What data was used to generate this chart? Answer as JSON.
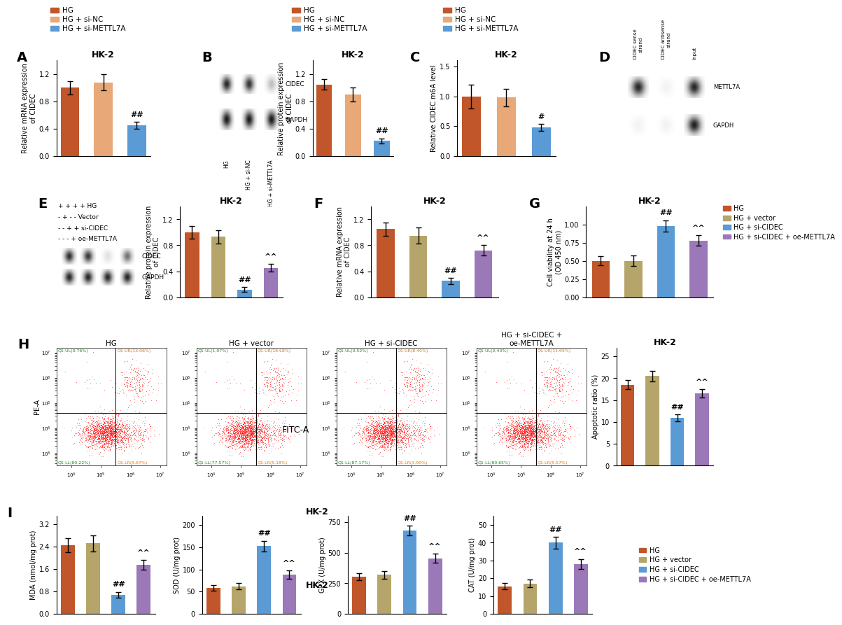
{
  "panel_A": {
    "title": "HK-2",
    "ylabel": "Relative mRNA expression\nof CIDEC",
    "ylim": [
      0,
      1.4
    ],
    "yticks": [
      0.0,
      0.4,
      0.8,
      1.2
    ],
    "values": [
      1.0,
      1.08,
      0.45
    ],
    "errors": [
      0.1,
      0.12,
      0.05
    ],
    "colors": [
      "#C0562A",
      "#E8A878",
      "#5B9BD5"
    ],
    "sig": [
      "",
      "",
      "##"
    ]
  },
  "panel_B_bar": {
    "title": "HK-2",
    "ylabel": "Relative protein expression\nof CIDEC",
    "ylim": [
      0,
      1.4
    ],
    "yticks": [
      0.0,
      0.4,
      0.8,
      1.2
    ],
    "values": [
      1.05,
      0.9,
      0.22
    ],
    "errors": [
      0.08,
      0.1,
      0.04
    ],
    "colors": [
      "#C0562A",
      "#E8A878",
      "#5B9BD5"
    ],
    "sig": [
      "",
      "",
      "##"
    ]
  },
  "panel_C": {
    "title": "HK-2",
    "ylabel": "Relative CIDEC m6A level",
    "ylim": [
      0,
      1.6
    ],
    "yticks": [
      0.0,
      0.5,
      1.0,
      1.5
    ],
    "values": [
      1.0,
      0.98,
      0.48
    ],
    "errors": [
      0.2,
      0.15,
      0.06
    ],
    "colors": [
      "#C0562A",
      "#E8A878",
      "#5B9BD5"
    ],
    "sig": [
      "",
      "",
      "#"
    ]
  },
  "panel_E_bar": {
    "title": "HK-2",
    "ylabel": "Relative protein expression\nof CIDEC",
    "ylim": [
      0,
      1.4
    ],
    "yticks": [
      0.0,
      0.4,
      0.8,
      1.2
    ],
    "values": [
      1.0,
      0.93,
      0.12,
      0.45
    ],
    "errors": [
      0.1,
      0.1,
      0.04,
      0.06
    ],
    "colors": [
      "#C0562A",
      "#B5A56A",
      "#5B9BD5",
      "#9B78B8"
    ],
    "sig": [
      "",
      "",
      "##",
      "^^"
    ]
  },
  "panel_F": {
    "title": "HK-2",
    "ylabel": "Relative mRNA expression\nof CIDEC",
    "ylim": [
      0,
      1.4
    ],
    "yticks": [
      0.0,
      0.4,
      0.8,
      1.2
    ],
    "values": [
      1.05,
      0.95,
      0.25,
      0.72
    ],
    "errors": [
      0.1,
      0.12,
      0.05,
      0.08
    ],
    "colors": [
      "#C0562A",
      "#B5A56A",
      "#5B9BD5",
      "#9B78B8"
    ],
    "sig": [
      "",
      "",
      "##",
      "^^"
    ]
  },
  "panel_G": {
    "title": "HK-2",
    "ylabel": "Cell viability at 24 h\n(OD 450 nm)",
    "ylim": [
      0.0,
      1.25
    ],
    "yticks": [
      0.0,
      0.25,
      0.5,
      0.75,
      1.0
    ],
    "values": [
      0.5,
      0.5,
      0.98,
      0.78
    ],
    "errors": [
      0.06,
      0.07,
      0.08,
      0.07
    ],
    "colors": [
      "#C0562A",
      "#B5A56A",
      "#5B9BD5",
      "#9B78B8"
    ],
    "sig": [
      "",
      "",
      "##",
      "^^"
    ]
  },
  "panel_H_apoptosis": {
    "title": "HK-2",
    "ylabel": "Apoptotic ratio (%)",
    "ylim": [
      0,
      27
    ],
    "yticks": [
      0,
      5,
      10,
      15,
      20,
      25
    ],
    "values": [
      18.5,
      20.5,
      11.0,
      16.5
    ],
    "errors": [
      1.0,
      1.2,
      0.8,
      1.0
    ],
    "colors": [
      "#C0562A",
      "#B5A56A",
      "#5B9BD5",
      "#9B78B8"
    ],
    "sig": [
      "",
      "",
      "##",
      "^^"
    ]
  },
  "panel_I_MDA": {
    "ylabel": "MDA (nmol/mg prot)",
    "ylim": [
      0,
      3.5
    ],
    "yticks": [
      0.0,
      0.8,
      1.6,
      2.4,
      3.2
    ],
    "values": [
      2.45,
      2.52,
      0.68,
      1.75
    ],
    "errors": [
      0.25,
      0.28,
      0.1,
      0.18
    ],
    "colors": [
      "#C0562A",
      "#B5A56A",
      "#5B9BD5",
      "#9B78B8"
    ],
    "sig": [
      "",
      "",
      "##",
      "^^"
    ]
  },
  "panel_I_SOD": {
    "ylabel": "SOD (U/mg prot)",
    "ylim": [
      0,
      220
    ],
    "yticks": [
      0,
      50,
      100,
      150,
      200
    ],
    "values": [
      58,
      62,
      152,
      88
    ],
    "errors": [
      6,
      7,
      12,
      9
    ],
    "colors": [
      "#C0562A",
      "#B5A56A",
      "#5B9BD5",
      "#9B78B8"
    ],
    "sig": [
      "",
      "",
      "##",
      "^^"
    ]
  },
  "panel_I_GPX": {
    "ylabel": "GPX (U/mg prot)",
    "ylim": [
      0,
      800
    ],
    "yticks": [
      0,
      250,
      500,
      750
    ],
    "values": [
      305,
      320,
      680,
      455
    ],
    "errors": [
      28,
      32,
      40,
      38
    ],
    "colors": [
      "#C0562A",
      "#B5A56A",
      "#5B9BD5",
      "#9B78B8"
    ],
    "sig": [
      "",
      "",
      "##",
      "^^"
    ]
  },
  "panel_I_CAT": {
    "ylabel": "CAT (U/mg prot)",
    "ylim": [
      0,
      55
    ],
    "yticks": [
      0,
      10,
      20,
      30,
      40,
      50
    ],
    "values": [
      15.5,
      17.0,
      40.0,
      28.0
    ],
    "errors": [
      1.8,
      2.2,
      3.2,
      2.8
    ],
    "colors": [
      "#C0562A",
      "#B5A56A",
      "#5B9BD5",
      "#9B78B8"
    ],
    "sig": [
      "",
      "",
      "##",
      "^^"
    ]
  },
  "legend_ABC": {
    "labels": [
      "HG",
      "HG + si-NC",
      "HG + si-METTL7A"
    ],
    "colors": [
      "#C0562A",
      "#E8A878",
      "#5B9BD5"
    ]
  },
  "legend_EFGHI": {
    "labels": [
      "HG",
      "HG + vector",
      "HG + si-CIDEC",
      "HG + si-CIDEC + oe-METTL7A"
    ],
    "colors": [
      "#C0562A",
      "#B5A56A",
      "#5B9BD5",
      "#9B78B8"
    ]
  },
  "flow_panels": [
    {
      "title": "HG",
      "Q1_UL": "0.76%",
      "Q1_UR": "13.36%",
      "Q1_LL": "80.22%",
      "Q1_LR": "5.67%"
    },
    {
      "title": "HG + vector",
      "Q1_UL": "1.07%",
      "Q1_UR": "18.18%",
      "Q1_LL": "77.57%",
      "Q1_LR": "5.18%"
    },
    {
      "title": "HG + si-CIDEC",
      "Q1_UL": "0.52%",
      "Q1_UR": "8.41%",
      "Q1_LL": "87.17%",
      "Q1_LR": "3.90%"
    },
    {
      "title": "HG + si-CIDEC +\noe-METTL7A",
      "Q1_UL": "2.43%",
      "Q1_UR": "11.35%",
      "Q1_LL": "80.65%",
      "Q1_LR": "5.57%"
    }
  ],
  "background_color": "#ffffff"
}
